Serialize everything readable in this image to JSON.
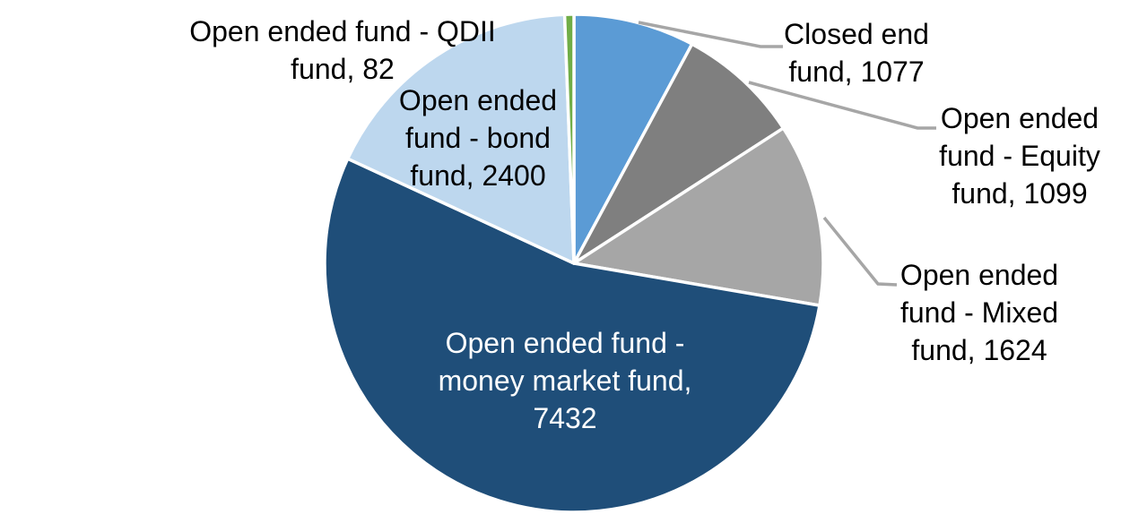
{
  "chart_data": {
    "type": "pie",
    "title": "",
    "legend": "none",
    "label_style": "category name and value, outside end",
    "total": 13714,
    "direction": "clockwise",
    "start_angle_deg": 0,
    "leader_line_color": "#A6A6A6",
    "separator_color": "#FFFFFF",
    "series": [
      {
        "name": "Closed end fund",
        "value": 1077,
        "color": "#5B9BD5",
        "label": "Closed end\nfund, 1077"
      },
      {
        "name": "Open ended fund - Equity fund",
        "value": 1099,
        "color": "#7F7F7F",
        "label": "Open ended\nfund - Equity\nfund, 1099"
      },
      {
        "name": "Open ended fund - Mixed fund",
        "value": 1624,
        "color": "#A6A6A6",
        "label": "Open ended\nfund - Mixed\nfund, 1624"
      },
      {
        "name": "Open ended fund - money market fund",
        "value": 7432,
        "color": "#1F4E79",
        "label": "Open ended fund -\nmoney market fund,\n7432"
      },
      {
        "name": "Open ended fund - bond fund",
        "value": 2400,
        "color": "#BDD7EE",
        "label": "Open ended\nfund - bond\nfund, 2400"
      },
      {
        "name": "Open ended fund - QDII fund",
        "value": 82,
        "color": "#70AD47",
        "label": "Open ended fund - QDII\nfund, 82"
      }
    ]
  }
}
